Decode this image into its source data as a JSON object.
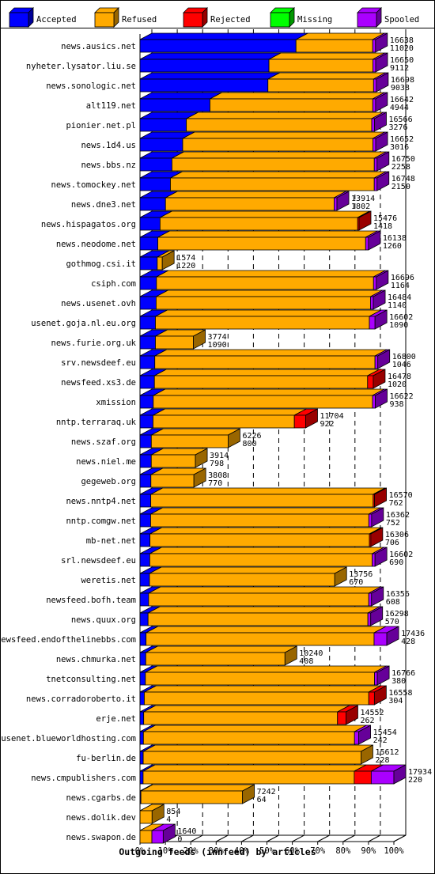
{
  "chart_data": {
    "type": "bar",
    "title": "Outgoing feeds (innfeed) by articles",
    "legend": [
      {
        "name": "Accepted",
        "color": "#0000ff",
        "dark": "#000099"
      },
      {
        "name": "Refused",
        "color": "#ffaa00",
        "dark": "#996600"
      },
      {
        "name": "Rejected",
        "color": "#ff0000",
        "dark": "#990000"
      },
      {
        "name": "Missing",
        "color": "#00ff00",
        "dark": "#009900"
      },
      {
        "name": "Spooled",
        "color": "#aa00ff",
        "dark": "#660099"
      }
    ],
    "xticks": [
      "0%",
      "10%",
      "20%",
      "30%",
      "40%",
      "50%",
      "60%",
      "70%",
      "80%",
      "90%",
      "100%"
    ],
    "xlim": [
      0,
      100
    ],
    "max_total": 17934,
    "rows": [
      {
        "name": "news.ausics.net",
        "total": 16638,
        "accepted": 11020,
        "refused": 5418,
        "rejected": 0,
        "missing": 0,
        "spooled": 200
      },
      {
        "name": "nyheter.lysator.liu.se",
        "total": 16650,
        "accepted": 9112,
        "refused": 7338,
        "rejected": 0,
        "missing": 0,
        "spooled": 200
      },
      {
        "name": "news.sonologic.net",
        "total": 16698,
        "accepted": 9038,
        "refused": 7460,
        "rejected": 0,
        "missing": 0,
        "spooled": 200
      },
      {
        "name": "alt119.net",
        "total": 16642,
        "accepted": 4944,
        "refused": 11498,
        "rejected": 0,
        "missing": 0,
        "spooled": 200
      },
      {
        "name": "pionier.net.pl",
        "total": 16566,
        "accepted": 3276,
        "refused": 13090,
        "rejected": 0,
        "missing": 0,
        "spooled": 200
      },
      {
        "name": "news.1d4.us",
        "total": 16652,
        "accepted": 3016,
        "refused": 13436,
        "rejected": 0,
        "missing": 0,
        "spooled": 200
      },
      {
        "name": "news.bbs.nz",
        "total": 16750,
        "accepted": 2258,
        "refused": 14292,
        "rejected": 0,
        "missing": 0,
        "spooled": 200
      },
      {
        "name": "news.tomockey.net",
        "total": 16748,
        "accepted": 2150,
        "refused": 14398,
        "rejected": 0,
        "missing": 0,
        "spooled": 200
      },
      {
        "name": "news.dne3.net",
        "total": 13914,
        "accepted": 1802,
        "refused": 11912,
        "rejected": 0,
        "missing": 0,
        "spooled": 200
      },
      {
        "name": "news.hispagatos.org",
        "total": 15476,
        "accepted": 1418,
        "refused": 13958,
        "rejected": 100,
        "missing": 0,
        "spooled": 0
      },
      {
        "name": "news.neodome.net",
        "total": 16138,
        "accepted": 1260,
        "refused": 14678,
        "rejected": 0,
        "missing": 0,
        "spooled": 200
      },
      {
        "name": "gothmog.csi.it",
        "total": 1574,
        "accepted": 1220,
        "refused": 354,
        "rejected": 0,
        "missing": 0,
        "spooled": 0
      },
      {
        "name": "csiph.com",
        "total": 16696,
        "accepted": 1164,
        "refused": 15332,
        "rejected": 0,
        "missing": 0,
        "spooled": 200
      },
      {
        "name": "news.usenet.ovh",
        "total": 16484,
        "accepted": 1140,
        "refused": 15144,
        "rejected": 0,
        "missing": 0,
        "spooled": 200
      },
      {
        "name": "usenet.goja.nl.eu.org",
        "total": 16602,
        "accepted": 1090,
        "refused": 15112,
        "rejected": 0,
        "missing": 0,
        "spooled": 400
      },
      {
        "name": "news.furie.org.uk",
        "total": 3774,
        "accepted": 1090,
        "refused": 2684,
        "rejected": 0,
        "missing": 0,
        "spooled": 0
      },
      {
        "name": "srv.newsdeef.eu",
        "total": 16800,
        "accepted": 1046,
        "refused": 15554,
        "rejected": 0,
        "missing": 0,
        "spooled": 200
      },
      {
        "name": "newsfeed.xs3.de",
        "total": 16478,
        "accepted": 1020,
        "refused": 15058,
        "rejected": 400,
        "missing": 0,
        "spooled": 0
      },
      {
        "name": "xmission",
        "total": 16622,
        "accepted": 938,
        "refused": 15484,
        "rejected": 0,
        "missing": 0,
        "spooled": 200
      },
      {
        "name": "nntp.terraraq.uk",
        "total": 11704,
        "accepted": 922,
        "refused": 9982,
        "rejected": 800,
        "missing": 0,
        "spooled": 0
      },
      {
        "name": "news.szaf.org",
        "total": 6226,
        "accepted": 800,
        "refused": 5426,
        "rejected": 0,
        "missing": 0,
        "spooled": 0
      },
      {
        "name": "news.niel.me",
        "total": 3914,
        "accepted": 798,
        "refused": 3116,
        "rejected": 0,
        "missing": 0,
        "spooled": 0
      },
      {
        "name": "gegeweb.org",
        "total": 3808,
        "accepted": 770,
        "refused": 3038,
        "rejected": 0,
        "missing": 0,
        "spooled": 0
      },
      {
        "name": "news.nntp4.net",
        "total": 16570,
        "accepted": 762,
        "refused": 15708,
        "rejected": 100,
        "missing": 0,
        "spooled": 0
      },
      {
        "name": "nntp.comgw.net",
        "total": 16362,
        "accepted": 752,
        "refused": 15410,
        "rejected": 0,
        "missing": 0,
        "spooled": 200
      },
      {
        "name": "mb-net.net",
        "total": 16306,
        "accepted": 706,
        "refused": 15500,
        "rejected": 100,
        "missing": 0,
        "spooled": 0
      },
      {
        "name": "srl.newsdeef.eu",
        "total": 16602,
        "accepted": 690,
        "refused": 15712,
        "rejected": 0,
        "missing": 0,
        "spooled": 200
      },
      {
        "name": "weretis.net",
        "total": 13756,
        "accepted": 670,
        "refused": 13086,
        "rejected": 0,
        "missing": 0,
        "spooled": 0
      },
      {
        "name": "newsfeed.bofh.team",
        "total": 16356,
        "accepted": 608,
        "refused": 15548,
        "rejected": 0,
        "missing": 0,
        "spooled": 200
      },
      {
        "name": "news.quux.org",
        "total": 16298,
        "accepted": 570,
        "refused": 15528,
        "rejected": 0,
        "missing": 0,
        "spooled": 200
      },
      {
        "name": "newsfeed.endofthelinebbs.com",
        "total": 17436,
        "accepted": 428,
        "refused": 16108,
        "rejected": 0,
        "missing": 0,
        "spooled": 900
      },
      {
        "name": "news.chmurka.net",
        "total": 10240,
        "accepted": 408,
        "refused": 9832,
        "rejected": 0,
        "missing": 0,
        "spooled": 0
      },
      {
        "name": "tnetconsulting.net",
        "total": 16766,
        "accepted": 380,
        "refused": 16186,
        "rejected": 0,
        "missing": 0,
        "spooled": 200
      },
      {
        "name": "news.corradoroberto.it",
        "total": 16558,
        "accepted": 304,
        "refused": 15854,
        "rejected": 400,
        "missing": 0,
        "spooled": 0
      },
      {
        "name": "erje.net",
        "total": 14552,
        "accepted": 262,
        "refused": 13690,
        "rejected": 600,
        "missing": 0,
        "spooled": 0
      },
      {
        "name": "usenet.blueworldhosting.com",
        "total": 15454,
        "accepted": 242,
        "refused": 14912,
        "rejected": 0,
        "missing": 0,
        "spooled": 300
      },
      {
        "name": "fu-berlin.de",
        "total": 15612,
        "accepted": 228,
        "refused": 15384,
        "rejected": 0,
        "missing": 0,
        "spooled": 0
      },
      {
        "name": "news.cmpublishers.com",
        "total": 17934,
        "accepted": 220,
        "refused": 14914,
        "rejected": 1200,
        "missing": 0,
        "spooled": 1600
      },
      {
        "name": "news.cgarbs.de",
        "total": 7242,
        "accepted": 64,
        "refused": 7178,
        "rejected": 0,
        "missing": 0,
        "spooled": 0
      },
      {
        "name": "news.dolik.dev",
        "total": 854,
        "accepted": 4,
        "refused": 850,
        "rejected": 0,
        "missing": 0,
        "spooled": 0
      },
      {
        "name": "news.swapon.de",
        "total": 1640,
        "accepted": 0,
        "refused": 840,
        "rejected": 0,
        "missing": 0,
        "spooled": 800
      }
    ]
  }
}
